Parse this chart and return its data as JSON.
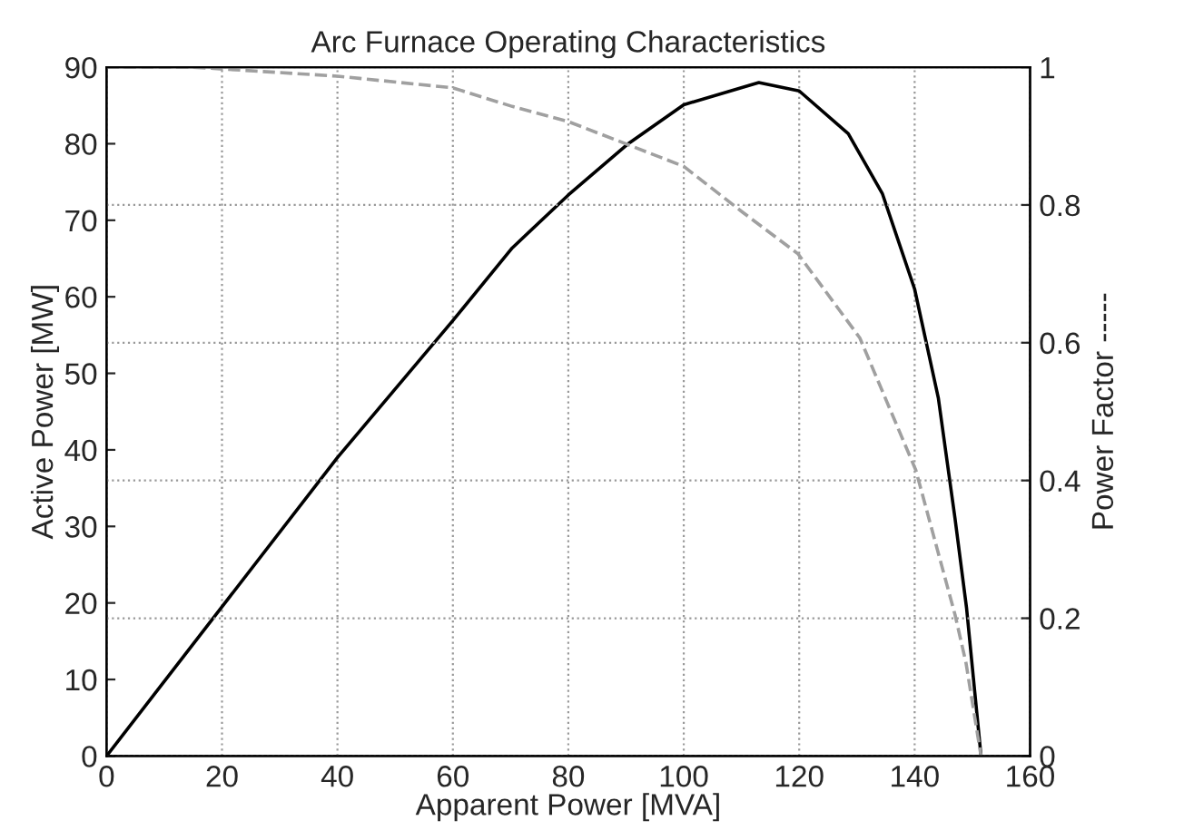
{
  "chart_data": {
    "type": "line",
    "title": "Arc Furnace Operating Characteristics",
    "xlabel": "Apparent Power [MVA]",
    "ylabel": "Active Power [MW]",
    "y2label": "Power Factor -----",
    "xlim": [
      0,
      160
    ],
    "xticks": [
      0,
      20,
      40,
      60,
      80,
      100,
      120,
      140,
      160
    ],
    "ylim": [
      0,
      90
    ],
    "yticks": [
      0,
      10,
      20,
      30,
      40,
      50,
      60,
      70,
      80,
      90
    ],
    "y2lim": [
      0,
      1
    ],
    "y2ticks": [
      0,
      0.2,
      0.4,
      0.6,
      0.8,
      1
    ],
    "grid": true,
    "legend": false,
    "series": [
      {
        "color": "#000000",
        "line_style": "solid",
        "x": [
          0,
          20,
          40,
          60,
          70.3,
          80,
          90.2,
          100,
          113,
          120,
          128.5,
          134.4,
          140,
          144.1,
          147,
          149,
          151.5
        ],
        "values": [
          0,
          19.5,
          39,
          56.9,
          66.4,
          73.3,
          79.9,
          85.1,
          88,
          86.9,
          81.3,
          73.5,
          61,
          46.8,
          31,
          19.3,
          0
        ]
      },
      {
        "color": "#a0a0a0",
        "line_style": "dashed",
        "axis": "y2",
        "x": [
          0,
          15,
          40,
          60,
          70.3,
          80,
          90.2,
          100,
          110.1,
          119.8,
          130.5,
          140.2,
          147,
          148.9,
          151.5
        ],
        "values": [
          1,
          1,
          0.987,
          0.97,
          0.943,
          0.921,
          0.888,
          0.856,
          0.79,
          0.729,
          0.607,
          0.415,
          0.205,
          0.135,
          0
        ]
      }
    ]
  }
}
